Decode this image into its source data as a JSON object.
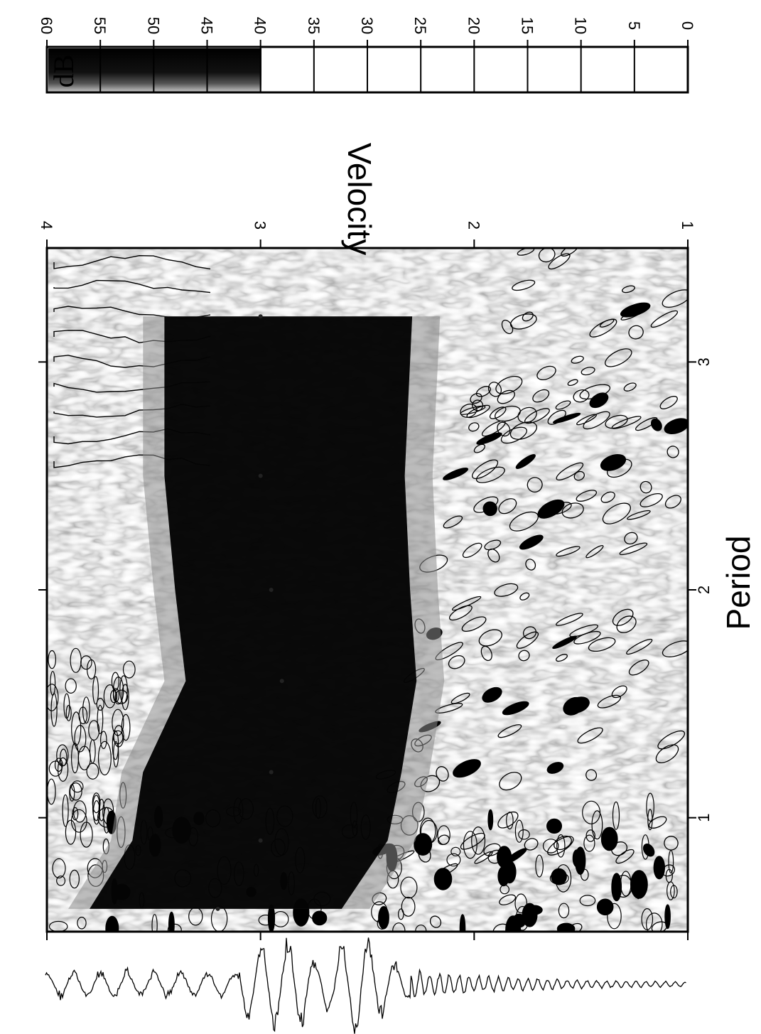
{
  "chart_data": {
    "type": "heatmap",
    "orientation": "rotated-90-clockwise",
    "title": "",
    "xlabel": "Period",
    "ylabel": "Velocity",
    "x_ticks": [
      "1",
      "2",
      "3"
    ],
    "y_ticks": [
      "2",
      "3",
      "4"
    ],
    "y_axis_extra_labels": [
      "1"
    ],
    "xlim": [
      0.5,
      3.5
    ],
    "ylim": [
      1,
      4
    ],
    "colorbar": {
      "label": "dB",
      "ticks": [
        "0",
        "5",
        "10",
        "15",
        "20",
        "25",
        "30",
        "35",
        "40",
        "45",
        "50",
        "55",
        "60"
      ],
      "range": [
        0,
        60
      ],
      "filled_above": 40,
      "colors": {
        "high": "#000000",
        "mid": "#888888",
        "low": "#ffffff"
      }
    },
    "contour_levels_db": [
      5,
      10,
      15,
      20,
      25,
      30,
      35,
      40
    ],
    "dispersion_ridge": [
      {
        "period": 0.6,
        "velocity": 3.2
      },
      {
        "period": 0.9,
        "velocity": 3.0
      },
      {
        "period": 1.2,
        "velocity": 2.95
      },
      {
        "period": 1.6,
        "velocity": 2.9
      },
      {
        "period": 2.0,
        "velocity": 2.95
      },
      {
        "period": 2.5,
        "velocity": 3.0
      },
      {
        "period": 3.2,
        "velocity": 3.0
      }
    ],
    "waveform": {
      "description": "seismogram trace along velocity axis"
    }
  },
  "styles": {
    "ink": "#000000",
    "paper": "#ffffff",
    "gray": "#9a9a9a"
  }
}
